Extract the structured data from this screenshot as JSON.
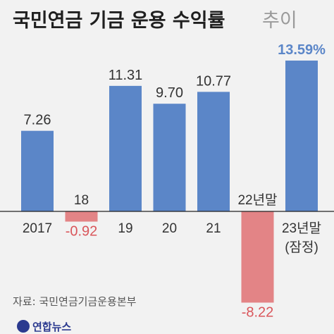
{
  "chart_data": {
    "type": "bar",
    "title": "국민연금 기금 운용 수익률",
    "subtitle": "추이",
    "categories": [
      "2017",
      "18",
      "19",
      "20",
      "21",
      "22년말",
      "23년말"
    ],
    "category_note": [
      "",
      "",
      "",
      "",
      "",
      "",
      "(잠정)"
    ],
    "values": [
      7.26,
      -0.92,
      11.31,
      9.7,
      10.77,
      -8.22,
      13.59
    ],
    "value_labels": [
      "7.26",
      "-0.92",
      "11.31",
      "9.70",
      "10.77",
      "-8.22",
      "13.59%"
    ],
    "positive_color": "#5b86c8",
    "negative_color": "#e38486",
    "highlight_label_color": "#5b86c8",
    "grid": false,
    "legend": "none"
  },
  "source": "자료: 국민연금기금운용본부",
  "logo": "연합뉴스"
}
